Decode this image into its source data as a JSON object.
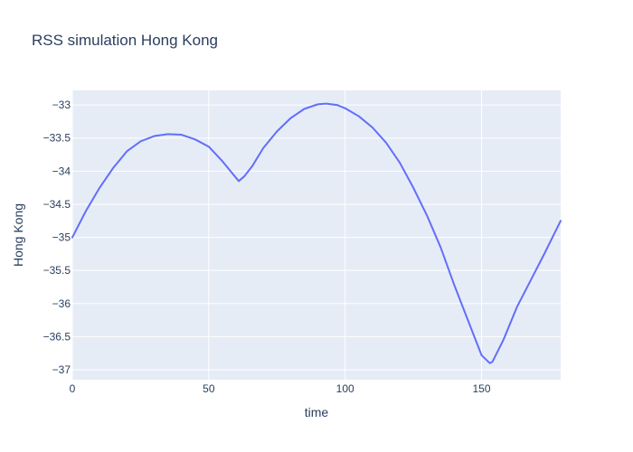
{
  "chart_data": {
    "type": "line",
    "title": "RSS simulation Hong Kong",
    "xlabel": "time",
    "ylabel": "Hong Kong",
    "xlim": [
      0,
      179
    ],
    "ylim": [
      -37.15,
      -32.78
    ],
    "xticks": [
      0,
      50,
      100,
      150
    ],
    "xtick_labels": [
      "0",
      "50",
      "100",
      "150"
    ],
    "yticks": [
      -33,
      -33.5,
      -34,
      -34.5,
      -35,
      -35.5,
      -36,
      -36.5,
      -37
    ],
    "ytick_labels": [
      "−33",
      "−33.5",
      "−34",
      "−34.5",
      "−35",
      "−35.5",
      "−36",
      "−36.5",
      "−37"
    ],
    "grid": true,
    "legend": false,
    "colors": {
      "plot_background": "#e5ecf6",
      "series": "#636efa"
    },
    "series": [
      {
        "x": [
          0,
          5,
          10,
          15,
          20,
          25,
          30,
          35,
          40,
          45,
          50,
          55,
          58,
          61,
          63,
          66,
          70,
          75,
          80,
          85,
          90,
          93,
          97,
          100,
          105,
          110,
          115,
          120,
          125,
          130,
          135,
          140,
          145,
          150,
          153,
          154,
          158,
          163,
          168,
          173,
          179
        ],
        "y": [
          -35.0,
          -34.6,
          -34.25,
          -33.95,
          -33.7,
          -33.55,
          -33.47,
          -33.44,
          -33.45,
          -33.52,
          -33.63,
          -33.85,
          -34.0,
          -34.15,
          -34.08,
          -33.92,
          -33.65,
          -33.4,
          -33.2,
          -33.06,
          -32.99,
          -32.98,
          -33.0,
          -33.05,
          -33.17,
          -33.34,
          -33.57,
          -33.87,
          -34.25,
          -34.67,
          -35.15,
          -35.72,
          -36.25,
          -36.78,
          -36.9,
          -36.88,
          -36.55,
          -36.05,
          -35.65,
          -35.25,
          -34.75
        ]
      }
    ]
  }
}
